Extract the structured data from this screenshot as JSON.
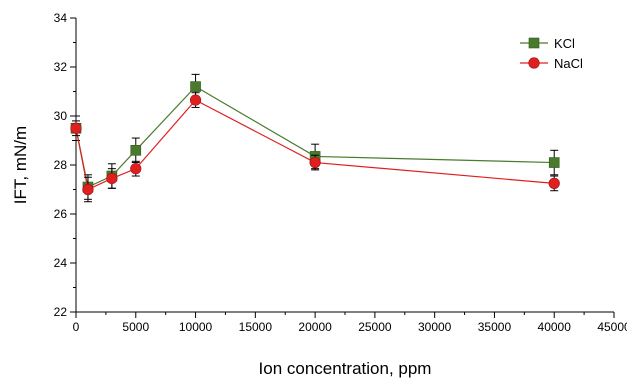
{
  "chart_data": {
    "type": "line",
    "title": "",
    "xlabel": "Ion concentration, ppm",
    "ylabel": "IFT, mN/m",
    "xlim": [
      0,
      45000
    ],
    "ylim": [
      22,
      34
    ],
    "x_ticks": [
      0,
      5000,
      10000,
      15000,
      20000,
      25000,
      30000,
      35000,
      40000,
      45000
    ],
    "x_tick_labels": [
      "0",
      "5000",
      "10000",
      "15000",
      "20000",
      "25000",
      "30000",
      "35000",
      "40000",
      "45000"
    ],
    "y_ticks": [
      22,
      24,
      26,
      28,
      30,
      32,
      34
    ],
    "y_tick_labels": [
      "22",
      "24",
      "26",
      "28",
      "30",
      "32",
      "34"
    ],
    "grid": false,
    "legend_position": "top-right",
    "error_bars": true,
    "series": [
      {
        "name": "KCl",
        "color": "#4a7a2e",
        "marker": "square",
        "x": [
          0,
          1000,
          3000,
          5000,
          10000,
          20000,
          40000
        ],
        "values": [
          29.5,
          27.1,
          27.55,
          28.6,
          31.2,
          28.35,
          28.1
        ],
        "errors": [
          0.5,
          0.5,
          0.5,
          0.5,
          0.5,
          0.5,
          0.5
        ]
      },
      {
        "name": "NaCl",
        "color": "#e02020",
        "marker": "circle",
        "x": [
          0,
          1000,
          3000,
          5000,
          10000,
          20000,
          40000
        ],
        "values": [
          29.5,
          27.0,
          27.45,
          27.85,
          30.65,
          28.1,
          27.25
        ],
        "errors": [
          0.3,
          0.5,
          0.4,
          0.3,
          0.3,
          0.3,
          0.3
        ]
      }
    ]
  }
}
